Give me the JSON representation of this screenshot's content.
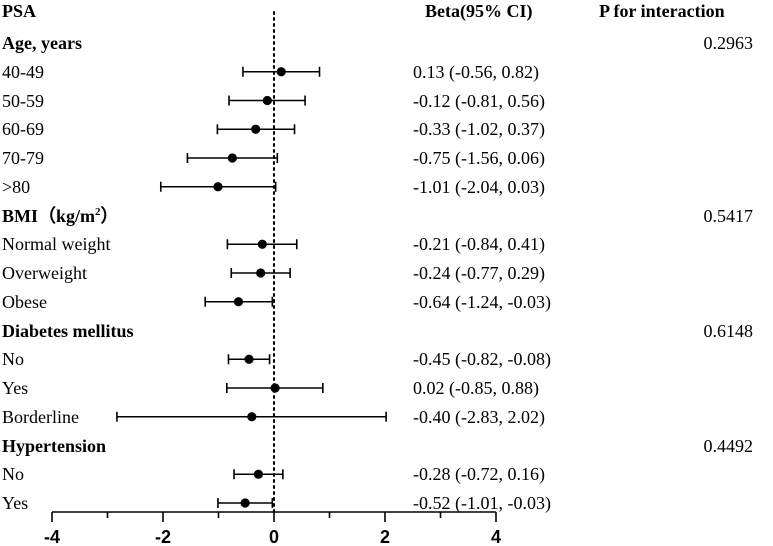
{
  "headers": {
    "outcome": "PSA",
    "beta": "Beta(95% CI)",
    "p_interaction": "P for interaction"
  },
  "chart_data": {
    "type": "forest",
    "title": "PSA",
    "xlim": [
      -4,
      4
    ],
    "xticks": [
      "-4",
      "-2",
      "0",
      "2",
      "4"
    ],
    "xtick_values": [
      -4,
      -2,
      0,
      2,
      4
    ],
    "reference_line": 0,
    "rows": [
      {
        "kind": "group",
        "label": "Age, years",
        "p": "0.2963"
      },
      {
        "kind": "item",
        "label": "40-49",
        "beta": 0.13,
        "lo": -0.56,
        "hi": 0.82,
        "ci_text": "0.13 (-0.56, 0.82)"
      },
      {
        "kind": "item",
        "label": "50-59",
        "beta": -0.12,
        "lo": -0.81,
        "hi": 0.56,
        "ci_text": "-0.12 (-0.81, 0.56)"
      },
      {
        "kind": "item",
        "label": "60-69",
        "beta": -0.33,
        "lo": -1.02,
        "hi": 0.37,
        "ci_text": "-0.33 (-1.02, 0.37)"
      },
      {
        "kind": "item",
        "label": "70-79",
        "beta": -0.75,
        "lo": -1.56,
        "hi": 0.06,
        "ci_text": "-0.75 (-1.56, 0.06)"
      },
      {
        "kind": "item",
        "label": ">80",
        "beta": -1.01,
        "lo": -2.04,
        "hi": 0.03,
        "ci_text": "-1.01 (-2.04, 0.03)"
      },
      {
        "kind": "group",
        "label": "BMI（kg/m",
        "label_sup": "2",
        "label_tail": "）",
        "p": "0.5417"
      },
      {
        "kind": "item",
        "label": "Normal weight",
        "beta": -0.21,
        "lo": -0.84,
        "hi": 0.41,
        "ci_text": "-0.21 (-0.84, 0.41)"
      },
      {
        "kind": "item",
        "label": "Overweight",
        "beta": -0.24,
        "lo": -0.77,
        "hi": 0.29,
        "ci_text": "-0.24 (-0.77, 0.29)"
      },
      {
        "kind": "item",
        "label": "Obese",
        "beta": -0.64,
        "lo": -1.24,
        "hi": -0.03,
        "ci_text": "-0.64 (-1.24, -0.03)"
      },
      {
        "kind": "group",
        "label": "Diabetes mellitus",
        "p": "0.6148"
      },
      {
        "kind": "item",
        "label": "No",
        "beta": -0.45,
        "lo": -0.82,
        "hi": -0.08,
        "ci_text": "-0.45 (-0.82, -0.08)"
      },
      {
        "kind": "item",
        "label": "Yes",
        "beta": 0.02,
        "lo": -0.85,
        "hi": 0.88,
        "ci_text": "0.02 (-0.85, 0.88)"
      },
      {
        "kind": "item",
        "label": "Borderline",
        "beta": -0.4,
        "lo": -2.83,
        "hi": 2.02,
        "ci_text": "-0.40 (-2.83, 2.02)"
      },
      {
        "kind": "group",
        "label": "Hypertension",
        "p": "0.4492"
      },
      {
        "kind": "item",
        "label": "No",
        "beta": -0.28,
        "lo": -0.72,
        "hi": 0.16,
        "ci_text": "-0.28 (-0.72, 0.16)"
      },
      {
        "kind": "item",
        "label": "Yes",
        "beta": -0.52,
        "lo": -1.01,
        "hi": -0.03,
        "ci_text": "-0.52 (-1.01, -0.03)"
      }
    ]
  }
}
